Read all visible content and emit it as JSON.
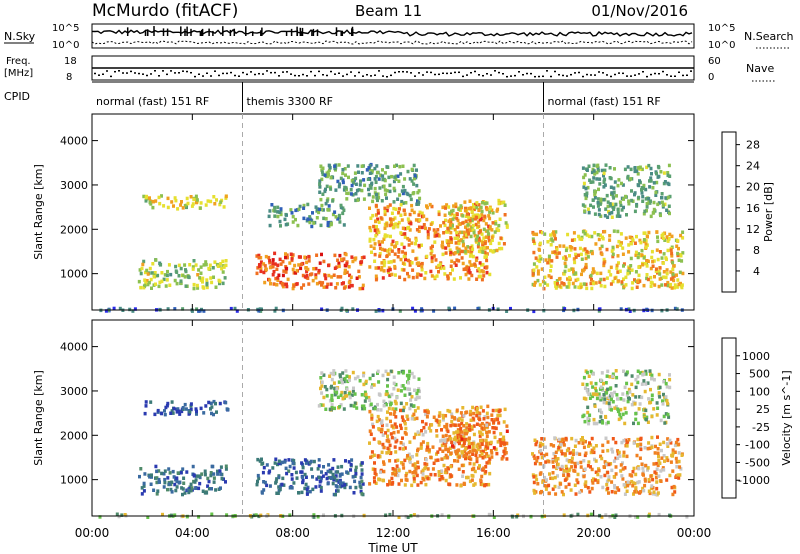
{
  "header": {
    "station": "McMurdo (fitACF)",
    "beam": "Beam 11",
    "date": "01/Nov/2016"
  },
  "top_panels": {
    "nsky_label": "N.Sky",
    "nsearch_label": "N.Search",
    "nsky_ticks": [
      "10^5",
      "10^0"
    ],
    "nsearch_ticks": [
      "10^5",
      "10^0"
    ],
    "freq_label": "Freq.",
    "freq_unit": "[MHz]",
    "freq_ticks": [
      "18",
      "8"
    ],
    "nave_label": "Nave",
    "nave_ticks": [
      "60",
      "0"
    ],
    "cpid_label": "CPID",
    "cpid_segments": [
      {
        "label": "normal (fast) 151 RF",
        "start_h": 0,
        "end_h": 6
      },
      {
        "label": "themis 3300 RF",
        "start_h": 6,
        "end_h": 18
      },
      {
        "label": "normal (fast) 151 RF",
        "start_h": 18,
        "end_h": 24
      }
    ]
  },
  "colors": {
    "power_scale": [
      "#2a2ae8",
      "#2f5fb8",
      "#4a8c84",
      "#5aa070",
      "#8cc050",
      "#e6e030",
      "#f0a020",
      "#f07020",
      "#e83020",
      "#d81010"
    ],
    "velocity_scale": [
      "#2a3ab0",
      "#3a6aa0",
      "#3c7a78",
      "#4f8a6a",
      "#66c24a",
      "#c8c8c8",
      "#e6b830",
      "#f08020",
      "#f05818",
      "#e62010"
    ]
  },
  "chart_data": [
    {
      "type": "heatmap",
      "title": "Power",
      "xlabel": "Time UT",
      "ylabel": "Slant Range [km]",
      "x_ticks": [
        "00:00",
        "04:00",
        "08:00",
        "12:00",
        "16:00",
        "20:00",
        "00:00"
      ],
      "y_ticks": [
        "1000",
        "2000",
        "3000",
        "4000"
      ],
      "xlim": [
        0,
        24
      ],
      "ylim": [
        180,
        4600
      ],
      "colorbar": {
        "label": "Power [dB]",
        "ticks": [
          "4",
          "8",
          "12",
          "16",
          "20",
          "24",
          "28"
        ],
        "range": [
          0,
          30
        ]
      },
      "echo_regions": [
        {
          "t0": 0.0,
          "t1": 24.0,
          "r0": 190,
          "r1": 260,
          "level": 0.15
        },
        {
          "t0": 2.0,
          "t1": 5.4,
          "r0": 2500,
          "r1": 2800,
          "level": 0.55
        },
        {
          "t0": 1.8,
          "t1": 5.3,
          "r0": 700,
          "r1": 1350,
          "level": 0.45
        },
        {
          "t0": 6.5,
          "t1": 10.8,
          "r0": 700,
          "r1": 1500,
          "level": 0.8
        },
        {
          "t0": 7.0,
          "t1": 10.0,
          "r0": 2100,
          "r1": 2600,
          "level": 0.3
        },
        {
          "t0": 9.0,
          "t1": 13.0,
          "r0": 2600,
          "r1": 3500,
          "level": 0.3
        },
        {
          "t0": 11.0,
          "t1": 15.8,
          "r0": 900,
          "r1": 2600,
          "level": 0.7
        },
        {
          "t0": 14.0,
          "t1": 16.5,
          "r0": 1500,
          "r1": 2700,
          "level": 0.6
        },
        {
          "t0": 17.5,
          "t1": 23.5,
          "r0": 700,
          "r1": 2000,
          "level": 0.6
        },
        {
          "t0": 19.5,
          "t1": 23.0,
          "r0": 2300,
          "r1": 3500,
          "level": 0.35
        }
      ]
    },
    {
      "type": "heatmap",
      "title": "Velocity",
      "xlabel": "Time UT",
      "ylabel": "Slant Range [km]",
      "x_ticks": [
        "00:00",
        "04:00",
        "08:00",
        "12:00",
        "16:00",
        "20:00",
        "00:00"
      ],
      "y_ticks": [
        "1000",
        "2000",
        "3000",
        "4000"
      ],
      "xlim": [
        0,
        24
      ],
      "ylim": [
        180,
        4600
      ],
      "colorbar": {
        "label": "Velocity [m s^-1]",
        "ticks": [
          "1000",
          "500",
          "100",
          "25",
          "-25",
          "-100",
          "-500",
          "-1000"
        ],
        "range": [
          -1000,
          1000
        ]
      },
      "echo_regions": [
        {
          "t0": 0.0,
          "t1": 24.0,
          "r0": 190,
          "r1": 260,
          "level": 0.5
        },
        {
          "t0": 2.0,
          "t1": 5.4,
          "r0": 2500,
          "r1": 2800,
          "level": 0.05
        },
        {
          "t0": 1.8,
          "t1": 5.3,
          "r0": 700,
          "r1": 1350,
          "level": 0.15
        },
        {
          "t0": 6.5,
          "t1": 10.8,
          "r0": 700,
          "r1": 1500,
          "level": 0.12
        },
        {
          "t0": 9.0,
          "t1": 13.0,
          "r0": 2600,
          "r1": 3500,
          "level": 0.5
        },
        {
          "t0": 11.0,
          "t1": 15.8,
          "r0": 900,
          "r1": 2600,
          "level": 0.75
        },
        {
          "t0": 14.0,
          "t1": 16.5,
          "r0": 1500,
          "r1": 2700,
          "level": 0.78
        },
        {
          "t0": 17.5,
          "t1": 23.5,
          "r0": 700,
          "r1": 2000,
          "level": 0.72
        },
        {
          "t0": 19.5,
          "t1": 23.0,
          "r0": 2300,
          "r1": 3500,
          "level": 0.5
        }
      ]
    }
  ]
}
